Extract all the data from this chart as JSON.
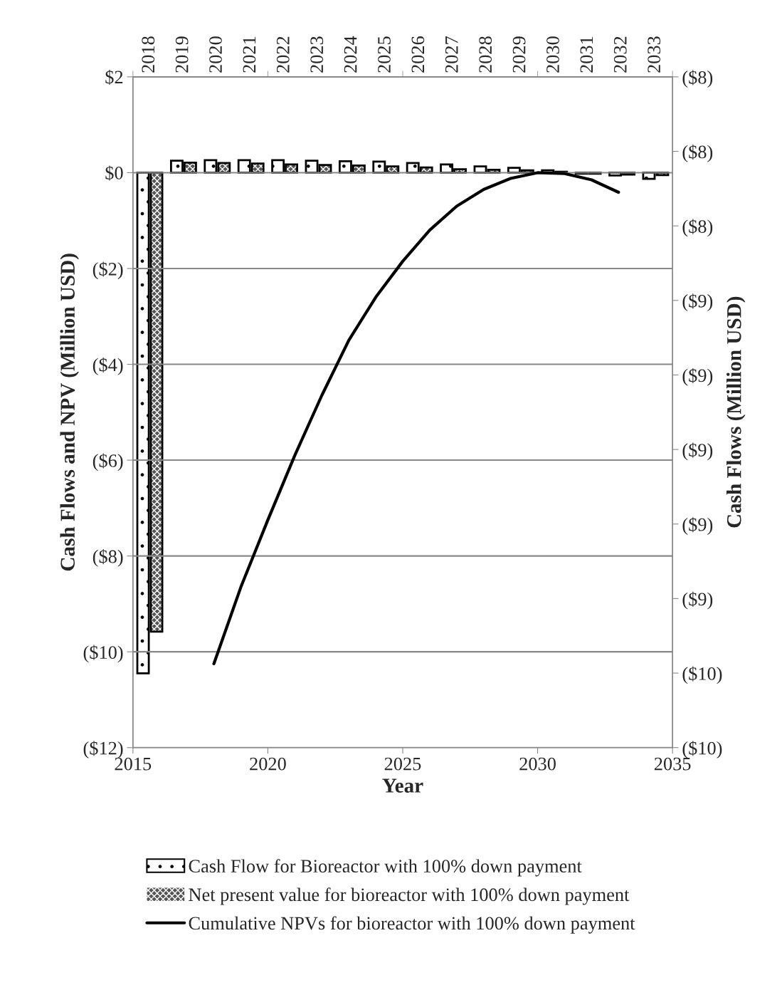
{
  "chart_data": {
    "type": "bar",
    "xlabel": "Year",
    "ylabel": "Cash Flows and NPV (Million USD)",
    "y2label": "Cash Flows (Million USD)",
    "x2lim": [
      2017.5,
      2033.5
    ],
    "x2ticks": [
      2018,
      2019,
      2020,
      2021,
      2022,
      2023,
      2024,
      2025,
      2026,
      2027,
      2028,
      2029,
      2030,
      2031,
      2032,
      2033
    ],
    "series": [
      {
        "name": "Cash Flow for Bioreactor with 100% down payment",
        "axis": "x2",
        "x": [
          2018,
          2019,
          2020,
          2021,
          2022,
          2023,
          2024,
          2025,
          2026,
          2027,
          2028,
          2029,
          2030,
          2031,
          2032,
          2033
        ],
        "color": "#ffffff",
        "values": [
          -10.45,
          0.25,
          0.26,
          0.26,
          0.26,
          0.25,
          0.24,
          0.23,
          0.2,
          0.17,
          0.13,
          0.1,
          0.05,
          -0.02,
          -0.06,
          -0.13
        ]
      },
      {
        "name": "Net present value for bioreactor with 100% down payment",
        "axis": "x2",
        "x": [
          2018,
          2019,
          2020,
          2021,
          2022,
          2023,
          2024,
          2025,
          2026,
          2027,
          2028,
          2029,
          2030,
          2031,
          2032,
          2033
        ],
        "color": "#555555",
        "values": [
          -9.58,
          0.21,
          0.2,
          0.19,
          0.17,
          0.16,
          0.15,
          0.13,
          0.11,
          0.07,
          0.06,
          0.05,
          0.02,
          -0.02,
          -0.04,
          -0.05
        ]
      },
      {
        "name": "Cumulative NPVs for bioreactor with 100% down payment",
        "type": "line",
        "color": "#000000",
        "x": [
          2018,
          2019,
          2020,
          2021,
          2022,
          2023,
          2024,
          2025,
          2026,
          2027,
          2028,
          2029,
          2030,
          2031,
          2032,
          2033
        ],
        "values": [
          -10.25,
          -8.65,
          -7.25,
          -5.9,
          -4.65,
          -3.5,
          -2.6,
          -1.85,
          -1.2,
          -0.7,
          -0.35,
          -0.12,
          0.0,
          -0.02,
          -0.15,
          -0.41
        ]
      }
    ],
    "xlim": [
      2015,
      2035
    ],
    "xticks": [
      2015,
      2020,
      2025,
      2030,
      2035
    ],
    "ylim": [
      -12,
      2
    ],
    "yticks": [
      {
        "value": 2,
        "label": "$2"
      },
      {
        "value": 0,
        "label": "$0"
      },
      {
        "value": -2,
        "label": "($2)"
      },
      {
        "value": -4,
        "label": "($4)"
      },
      {
        "value": -6,
        "label": "($6)"
      },
      {
        "value": -8,
        "label": "($8)"
      },
      {
        "value": -10,
        "label": "($10)"
      },
      {
        "value": -12,
        "label": "($12)"
      }
    ],
    "y2lim": [
      -9.8,
      -8.0
    ],
    "y2ticks": [
      {
        "value": -8.0,
        "label": "($8)"
      },
      {
        "value": -8.2,
        "label": "($8)"
      },
      {
        "value": -8.4,
        "label": "($8)"
      },
      {
        "value": -8.6,
        "label": "($9)"
      },
      {
        "value": -8.8,
        "label": "($9)"
      },
      {
        "value": -9.0,
        "label": "($9)"
      },
      {
        "value": -9.2,
        "label": "($9)"
      },
      {
        "value": -9.4,
        "label": "($9)"
      },
      {
        "value": -9.6,
        "label": "($10)"
      },
      {
        "value": -9.8,
        "label": "($10)"
      }
    ],
    "grid": "y",
    "legend": "bottom",
    "line_style": "solid",
    "marker": "none"
  }
}
